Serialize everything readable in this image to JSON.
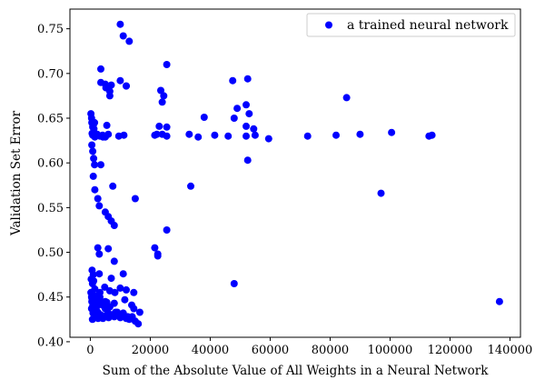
{
  "chart_data": {
    "type": "scatter",
    "xlabel": "Sum of the Absolute Value of All Weights in a Neural Network",
    "ylabel": "Validation Set Error",
    "xlim": [
      -6800,
      143500
    ],
    "ylim": [
      0.405,
      0.772
    ],
    "xticks": [
      0,
      20000,
      40000,
      60000,
      80000,
      100000,
      120000,
      140000
    ],
    "xtick_labels": [
      "0",
      "20000",
      "40000",
      "60000",
      "80000",
      "100000",
      "120000",
      "140000"
    ],
    "yticks": [
      0.4,
      0.45,
      0.5,
      0.55,
      0.6,
      0.65,
      0.7,
      0.75
    ],
    "ytick_labels": [
      "0.40",
      "0.45",
      "0.50",
      "0.55",
      "0.60",
      "0.65",
      "0.70",
      "0.75"
    ],
    "grid": false,
    "legend_position": "top-right",
    "marker_color": "#0000ff",
    "series": [
      {
        "name": "a trained neural network",
        "x": [
          500,
          800,
          1200,
          1500,
          2000,
          2500,
          3000,
          3500,
          4000,
          4500,
          5000,
          5500,
          6000,
          6500,
          7000,
          8000,
          9000,
          10000,
          11000,
          12000,
          13000,
          14000,
          15000,
          16000,
          200,
          400,
          600,
          900,
          1100,
          1300,
          1600,
          1800,
          2200,
          2600,
          2800,
          3200,
          300,
          700,
          1000,
          600,
          1100,
          400,
          900,
          1500,
          2100,
          3000,
          700,
          1300,
          1900,
          2600,
          3400,
          4200,
          5100,
          6100,
          7200,
          8400,
          9600,
          11000,
          12500,
          14500,
          16500,
          1500,
          3200,
          4800,
          6500,
          8200,
          10000,
          12000,
          14500,
          2000,
          5000,
          8000,
          11500,
          13800,
          3000,
          7000,
          11000,
          800,
          1500,
          2300,
          3200,
          4100,
          5000,
          6000,
          600,
          1700,
          2600,
          1900,
          4200,
          9500,
          11200,
          21500,
          22200,
          24000,
          25500,
          33000,
          36000,
          41500,
          46000,
          52000,
          55000,
          59500,
          72500,
          82000,
          90000,
          100500,
          113000,
          114000,
          200,
          400,
          500,
          800,
          1000,
          1200,
          1400,
          500,
          800,
          1100,
          1400,
          1000,
          1500,
          2500,
          3000,
          5000,
          6000,
          7000,
          8000,
          5500,
          23000,
          24000,
          25500,
          52000,
          53000,
          54500,
          3500,
          5000,
          5200,
          6500,
          10000,
          12000,
          25500,
          47500,
          52500,
          85500,
          3500,
          6500,
          13000,
          38000,
          48000,
          49000,
          52000,
          12000,
          23500,
          24500,
          7000,
          10000,
          11000,
          33500,
          52500,
          97000,
          2500,
          3000,
          6000,
          8000,
          22500,
          21500,
          22500,
          25500,
          3500,
          7500,
          15000,
          48000,
          136500
        ],
        "y": [
          0.445,
          0.44,
          0.435,
          0.442,
          0.438,
          0.433,
          0.446,
          0.43,
          0.441,
          0.428,
          0.437,
          0.444,
          0.432,
          0.439,
          0.43,
          0.428,
          0.433,
          0.427,
          0.429,
          0.426,
          0.425,
          0.428,
          0.423,
          0.42,
          0.455,
          0.45,
          0.448,
          0.452,
          0.447,
          0.443,
          0.449,
          0.451,
          0.446,
          0.449,
          0.445,
          0.45,
          0.47,
          0.465,
          0.475,
          0.48,
          0.468,
          0.437,
          0.432,
          0.436,
          0.431,
          0.429,
          0.425,
          0.428,
          0.431,
          0.426,
          0.429,
          0.426,
          0.429,
          0.427,
          0.43,
          0.433,
          0.429,
          0.432,
          0.428,
          0.437,
          0.433,
          0.459,
          0.455,
          0.461,
          0.457,
          0.455,
          0.46,
          0.458,
          0.455,
          0.442,
          0.445,
          0.443,
          0.447,
          0.441,
          0.476,
          0.471,
          0.476,
          0.631,
          0.629,
          0.632,
          0.63,
          0.631,
          0.629,
          0.632,
          0.633,
          0.63,
          0.631,
          0.63,
          0.629,
          0.63,
          0.631,
          0.631,
          0.632,
          0.632,
          0.63,
          0.632,
          0.629,
          0.631,
          0.63,
          0.63,
          0.631,
          0.627,
          0.63,
          0.631,
          0.632,
          0.634,
          0.63,
          0.631,
          0.655,
          0.65,
          0.645,
          0.64,
          0.642,
          0.638,
          0.645,
          0.62,
          0.613,
          0.605,
          0.598,
          0.585,
          0.57,
          0.56,
          0.552,
          0.545,
          0.54,
          0.535,
          0.53,
          0.642,
          0.641,
          0.668,
          0.64,
          0.641,
          0.655,
          0.638,
          0.69,
          0.688,
          0.684,
          0.68,
          0.692,
          0.686,
          0.71,
          0.692,
          0.694,
          0.673,
          0.705,
          0.675,
          0.736,
          0.651,
          0.65,
          0.661,
          0.665,
          0.686,
          0.681,
          0.675,
          0.687,
          0.755,
          0.742,
          0.574,
          0.603,
          0.566,
          0.505,
          0.498,
          0.504,
          0.49,
          0.496,
          0.505,
          0.498,
          0.525,
          0.598,
          0.574,
          0.56,
          0.465,
          0.445
        ]
      }
    ]
  }
}
